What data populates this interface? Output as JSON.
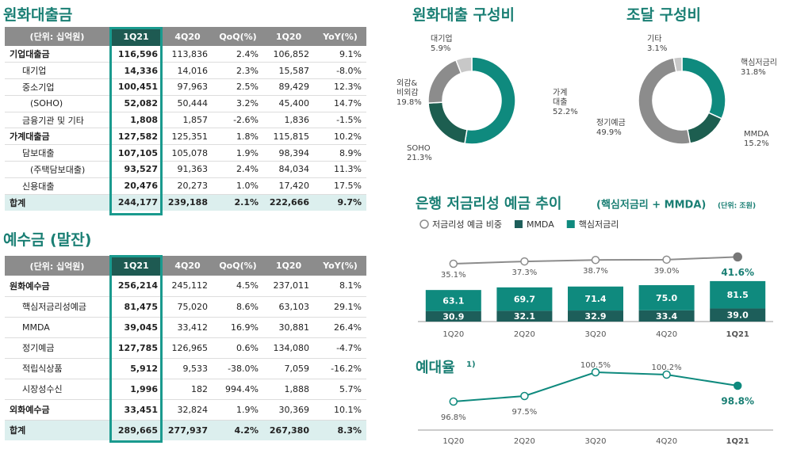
{
  "tables": [
    {
      "title": "원화대출금",
      "header": [
        "(단위: 십억원)",
        "1Q21",
        "4Q20",
        "QoQ(%)",
        "1Q20",
        "YoY(%)"
      ],
      "rows": [
        [
          "기업대출금",
          "116,596",
          "113,836",
          "2.4%",
          "106,852",
          "9.1%"
        ],
        [
          "대기업",
          "14,336",
          "14,016",
          "2.3%",
          "15,587",
          "-8.0%"
        ],
        [
          "중소기업",
          "100,451",
          "97,963",
          "2.5%",
          "89,429",
          "12.3%"
        ],
        [
          "(SOHO)",
          "52,082",
          "50,444",
          "3.2%",
          "45,400",
          "14.7%"
        ],
        [
          "금융기관 및 기타",
          "1,808",
          "1,857",
          "-2.6%",
          "1,836",
          "-1.5%"
        ],
        [
          "가계대출금",
          "127,582",
          "125,351",
          "1.8%",
          "115,815",
          "10.2%"
        ],
        [
          "담보대출",
          "107,105",
          "105,078",
          "1.9%",
          "98,394",
          "8.9%"
        ],
        [
          "(주택담보대출)",
          "93,527",
          "91,363",
          "2.4%",
          "84,034",
          "11.3%"
        ],
        [
          "신용대출",
          "20,476",
          "20,273",
          "1.0%",
          "17,420",
          "17.5%"
        ],
        [
          "합계",
          "244,177",
          "239,188",
          "2.1%",
          "222,666",
          "9.7%"
        ]
      ]
    },
    {
      "title": "예수금 (말잔)",
      "header": [
        "(단위: 십억원)",
        "1Q21",
        "4Q20",
        "QoQ(%)",
        "1Q20",
        "YoY(%)"
      ],
      "rows": [
        [
          "원화예수금",
          "256,214",
          "245,112",
          "4.5%",
          "237,011",
          "8.1%"
        ],
        [
          "핵심저금리성예금",
          "81,475",
          "75,020",
          "8.6%",
          "63,103",
          "29.1%"
        ],
        [
          "MMDA",
          "39,045",
          "33,412",
          "16.9%",
          "30,881",
          "26.4%"
        ],
        [
          "정기예금",
          "127,785",
          "126,965",
          "0.6%",
          "134,080",
          "-4.7%"
        ],
        [
          "적립식상품",
          "5,912",
          "9,533",
          "-38.0%",
          "7,059",
          "-16.2%"
        ],
        [
          "시장성수신",
          "1,996",
          "182",
          "994.4%",
          "1,888",
          "5.7%"
        ],
        [
          "외화예수금",
          "33,451",
          "32,824",
          "1.9%",
          "30,369",
          "10.1%"
        ],
        [
          "합계",
          "289,665",
          "277,937",
          "4.2%",
          "267,380",
          "8.3%"
        ]
      ]
    }
  ],
  "chart_data": [
    {
      "type": "donut",
      "title": "원화대출 구성비",
      "categories": [
        "가계\n대출",
        "SOHO",
        "외감&\n비외감",
        "대기업"
      ],
      "values": [
        52.2,
        21.3,
        19.8,
        5.9
      ],
      "value_labels": [
        "52.2%",
        "21.3%",
        "19.8%",
        "5.9%"
      ],
      "colors": [
        "#0f8a7e",
        "#1d5e50",
        "#8c8c8c",
        "#c8c8c8"
      ]
    },
    {
      "type": "donut",
      "title": "조달 구성비",
      "categories": [
        "핵심저금리",
        "MMDA",
        "정기예금",
        "기타"
      ],
      "values": [
        31.8,
        15.2,
        49.9,
        3.1
      ],
      "value_labels": [
        "31.8%",
        "15.2%",
        "49.9%",
        "3.1%"
      ],
      "colors": [
        "#0f8a7e",
        "#1d5e50",
        "#8c8c8c",
        "#c8c8c8"
      ]
    },
    {
      "type": "bar",
      "title": "은행 저금리성  예금 추이",
      "subtitle": "(핵심저금리 + MMDA)",
      "unit": "(단위: 조원)",
      "categories": [
        "1Q20",
        "2Q20",
        "3Q20",
        "4Q20",
        "1Q21"
      ],
      "stacked": true,
      "ylim": [
        0,
        250
      ],
      "y2lim": [
        -20,
        60
      ],
      "series": [
        {
          "name": "저금리성 예금 비중",
          "type": "line",
          "axis": "y2",
          "color": "#8c8c8c",
          "values": [
            35.1,
            37.3,
            38.7,
            39.0,
            41.6
          ],
          "value_labels": [
            "35.1%",
            "37.3%",
            "38.7%",
            "39.0%",
            "41.6%"
          ]
        },
        {
          "name": "MMDA",
          "type": "bar",
          "color": "#1d5e5a",
          "values": [
            30.9,
            32.1,
            32.9,
            33.4,
            39.0
          ],
          "value_labels": [
            "30.9",
            "32.1",
            "32.9",
            "33.4",
            "39.0"
          ]
        },
        {
          "name": "핵심저금리",
          "type": "bar",
          "color": "#0f8a7e",
          "values": [
            63.1,
            69.7,
            71.4,
            75.0,
            81.5
          ],
          "value_labels": [
            "63.1",
            "69.7",
            "71.4",
            "75.0",
            "81.5"
          ]
        }
      ]
    },
    {
      "type": "line",
      "title": "예대율",
      "title_note": "1)",
      "categories": [
        "1Q20",
        "2Q20",
        "3Q20",
        "4Q20",
        "1Q21"
      ],
      "ylim": [
        93,
        102
      ],
      "series": [
        {
          "color": "#0f8a7e",
          "values": [
            96.8,
            97.5,
            100.5,
            100.2,
            98.8
          ],
          "value_labels": [
            "96.8%",
            "97.5%",
            "100.5%",
            "100.2%",
            "98.8%"
          ]
        }
      ]
    }
  ]
}
